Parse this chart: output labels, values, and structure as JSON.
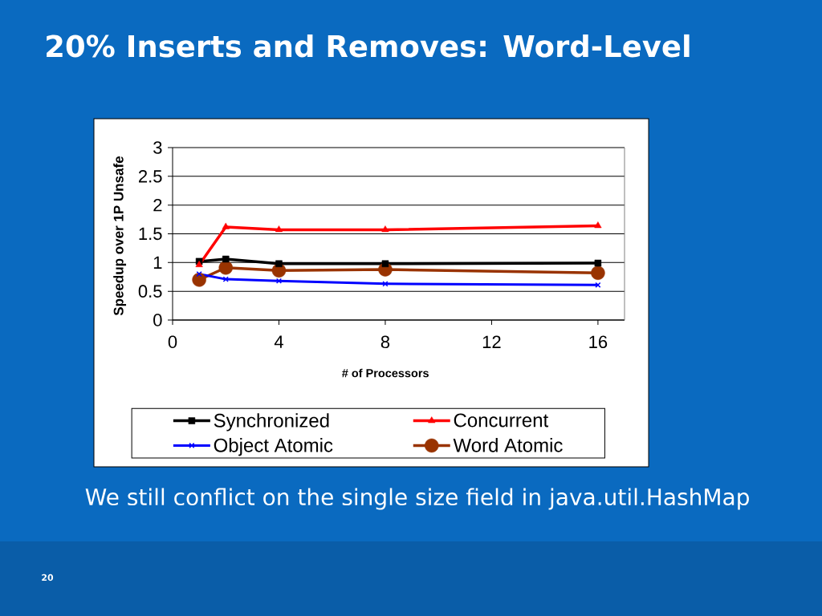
{
  "chart_data": {
    "type": "line",
    "title": "20% Inserts and Removes: Word-Level",
    "xlabel": "# of Processors",
    "ylabel": "Speedup over 1P Unsafe",
    "annotations": [
      "We still conflict on the single size field in java.util.HashMap",
      "20"
    ],
    "x": [
      1,
      2,
      4,
      8,
      16
    ],
    "series": [
      {
        "name": "Synchronized",
        "color": "#000000",
        "marker": "square",
        "values": [
          1.02,
          1.06,
          0.98,
          0.98,
          0.99
        ]
      },
      {
        "name": "Concurrent",
        "color": "#ff0000",
        "marker": "triangle",
        "values": [
          0.96,
          1.62,
          1.57,
          1.57,
          1.64
        ]
      },
      {
        "name": "Object Atomic",
        "color": "#0000ff",
        "marker": "cross",
        "values": [
          0.8,
          0.71,
          0.68,
          0.63,
          0.61
        ]
      },
      {
        "name": "Word Atomic",
        "color": "#993300",
        "marker": "circle",
        "values": [
          0.7,
          0.91,
          0.86,
          0.88,
          0.82
        ]
      }
    ],
    "xlim": [
      0,
      17
    ],
    "ylim": [
      0,
      3
    ],
    "xticks": [
      0,
      4,
      8,
      12,
      16
    ],
    "yticks": [
      0,
      0.5,
      1,
      1.5,
      2,
      2.5,
      3
    ],
    "grid": "y",
    "legend": "bottom",
    "line_style": "solid"
  }
}
